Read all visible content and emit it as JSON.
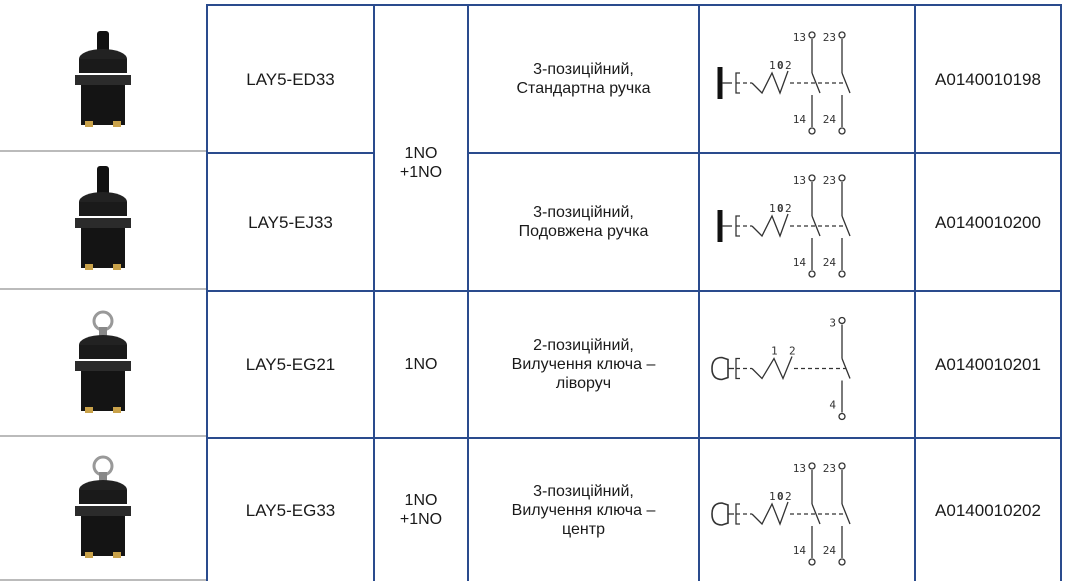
{
  "table": {
    "rows": [
      {
        "model": "LAY5-ED33",
        "contacts": [
          "1NO",
          "+1NO"
        ],
        "description": [
          "3-позиційний,",
          "Стандартна ручка"
        ],
        "article": "A0140010198",
        "schematic": {
          "positions": [
            "1",
            "0",
            "2"
          ],
          "top": [
            "13",
            "23"
          ],
          "bottom": [
            "14",
            "24"
          ]
        }
      },
      {
        "model": "LAY5-EJ33",
        "description": [
          "3-позиційний,",
          "Подовжена ручка"
        ],
        "article": "A0140010200",
        "schematic": {
          "positions": [
            "1",
            "0",
            "2"
          ],
          "top": [
            "13",
            "23"
          ],
          "bottom": [
            "14",
            "24"
          ]
        }
      },
      {
        "model": "LAY5-EG21",
        "contacts": [
          "1NO"
        ],
        "description": [
          "2-позиційний,",
          "Вилучення ключа –",
          "ліворуч"
        ],
        "article": "A0140010201",
        "schematic": {
          "positions": [
            "1",
            "2"
          ],
          "top": [
            "3"
          ],
          "bottom": [
            "4"
          ]
        }
      },
      {
        "model": "LAY5-EG33",
        "contacts": [
          "1NO",
          "+1NO"
        ],
        "description": [
          "3-позиційний,",
          "Вилучення ключа –",
          "центр"
        ],
        "article": "A0140010202",
        "schematic": {
          "positions": [
            "1",
            "0",
            "2"
          ],
          "top": [
            "13",
            "23"
          ],
          "bottom": [
            "14",
            "24"
          ]
        }
      }
    ]
  }
}
